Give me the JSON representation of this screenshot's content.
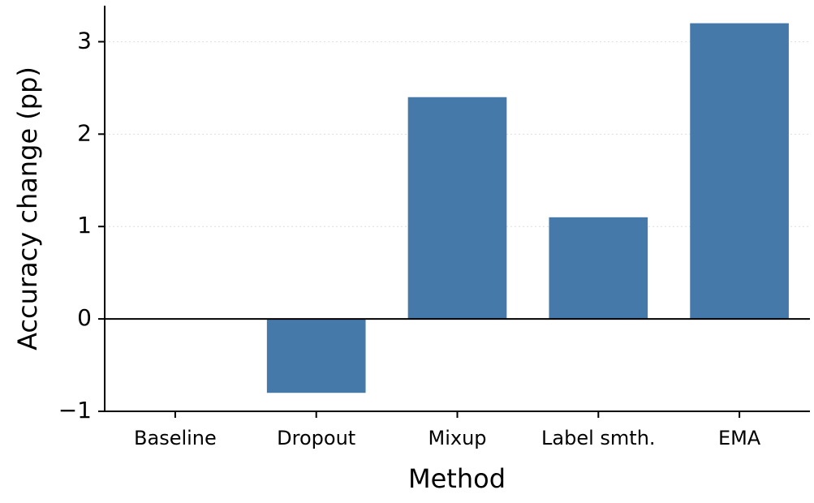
{
  "chart_data": {
    "type": "bar",
    "x_label": "Method",
    "y_label": "Accuracy change (pp)",
    "categories": [
      "Baseline",
      "Dropout",
      "Mixup",
      "Label smth.",
      "EMA"
    ],
    "values": [
      0,
      -0.8,
      2.4,
      1.1,
      3.2
    ],
    "color": "#4579aa",
    "ylim": [
      -1,
      3.39
    ],
    "yticks": [
      {
        "value": -1,
        "label": "−1"
      },
      0,
      1,
      2,
      3
    ],
    "grid": true
  }
}
